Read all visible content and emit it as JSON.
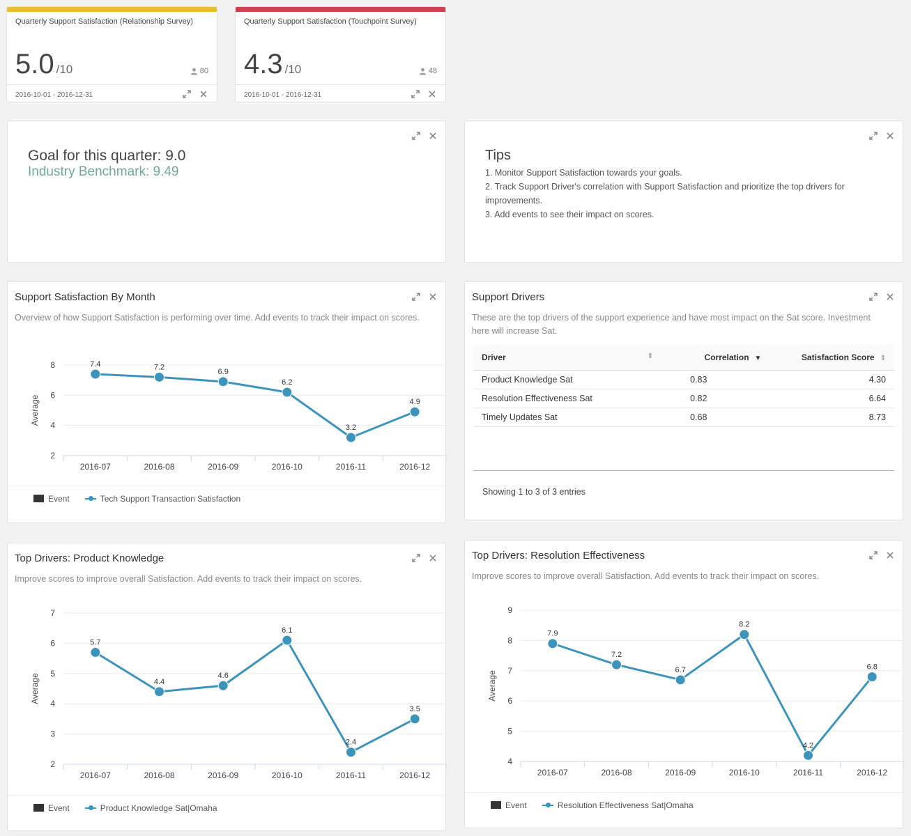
{
  "kpis": [
    {
      "title": "Quarterly Support Satisfaction (Relationship Survey)",
      "value": "5.0",
      "denom": "/10",
      "responses": "80",
      "date_range": "2016-10-01 - 2016-12-31",
      "accent": "#e8c02e"
    },
    {
      "title": "Quarterly Support Satisfaction (Touchpoint Survey)",
      "value": "4.3",
      "denom": "/10",
      "responses": "48",
      "date_range": "2016-10-01 - 2016-12-31",
      "accent": "#d0404c"
    }
  ],
  "goal": {
    "title": "Goal for this quarter: 9.0",
    "benchmark": "Industry Benchmark: 9.49"
  },
  "tips": {
    "title": "Tips",
    "items": [
      "1. Monitor Support Satisfaction towards your goals.",
      "2. Track Support Driver's correlation with Support Satisfaction and prioritize the top drivers for improvements.",
      "3. Add events to see their impact on scores."
    ]
  },
  "drivers": {
    "title": "Support Drivers",
    "description": "These are the top drivers of the support experience and have most impact on the Sat score. Investment here will increase Sat.",
    "columns": [
      "Driver",
      "Correlation",
      "Satisfaction Score"
    ],
    "rows": [
      [
        "Product Knowledge Sat",
        "0.83",
        "4.30"
      ],
      [
        "Resolution Effectiveness Sat",
        "0.82",
        "6.64"
      ],
      [
        "Timely Updates Sat",
        "0.68",
        "8.73"
      ]
    ],
    "info": "Showing 1 to 3 of 3 entries"
  },
  "panels": {
    "by_month": {
      "title": "Support Satisfaction By Month",
      "description": "Overview of how Support Satisfaction is performing over time. Add events to track their impact on scores.",
      "legend_event": "Event",
      "legend_series": "Tech Support Transaction Satisfaction"
    },
    "product_knowledge": {
      "title": "Top Drivers: Product Knowledge",
      "description": "Improve scores to improve overall Satisfaction. Add events to track their impact on scores.",
      "legend_event": "Event",
      "legend_series": "Product Knowledge Sat|Omaha"
    },
    "resolution": {
      "title": "Top Drivers: Resolution Effectiveness",
      "description": "Improve scores to improve overall Satisfaction. Add events to track their impact on scores.",
      "legend_event": "Event",
      "legend_series": "Resolution Effectiveness Sat|Omaha"
    }
  },
  "chart_data": [
    {
      "type": "line",
      "title": "Support Satisfaction By Month",
      "ylabel": "Average",
      "categories": [
        "2016-07",
        "2016-08",
        "2016-09",
        "2016-10",
        "2016-11",
        "2016-12"
      ],
      "series": [
        {
          "name": "Tech Support Transaction Satisfaction",
          "values": [
            7.4,
            7.2,
            6.9,
            6.2,
            3.2,
            4.9
          ]
        }
      ],
      "yticks": [
        2,
        4,
        6,
        8
      ],
      "ylim": [
        2,
        8
      ],
      "color": "#3c94bd"
    },
    {
      "type": "line",
      "title": "Top Drivers: Product Knowledge",
      "ylabel": "Average",
      "categories": [
        "2016-07",
        "2016-08",
        "2016-09",
        "2016-10",
        "2016-11",
        "2016-12"
      ],
      "series": [
        {
          "name": "Product Knowledge Sat|Omaha",
          "values": [
            5.7,
            4.4,
            4.6,
            6.1,
            2.4,
            3.5
          ]
        }
      ],
      "yticks": [
        2,
        3,
        4,
        5,
        6,
        7
      ],
      "ylim": [
        2,
        7
      ],
      "color": "#3c94bd"
    },
    {
      "type": "line",
      "title": "Top Drivers: Resolution Effectiveness",
      "ylabel": "Average",
      "categories": [
        "2016-07",
        "2016-08",
        "2016-09",
        "2016-10",
        "2016-11",
        "2016-12"
      ],
      "series": [
        {
          "name": "Resolution Effectiveness Sat|Omaha",
          "values": [
            7.9,
            7.2,
            6.7,
            8.2,
            4.2,
            6.8
          ]
        }
      ],
      "yticks": [
        4,
        5,
        6,
        7,
        8,
        9
      ],
      "ylim": [
        4,
        9
      ],
      "color": "#3c94bd"
    }
  ]
}
